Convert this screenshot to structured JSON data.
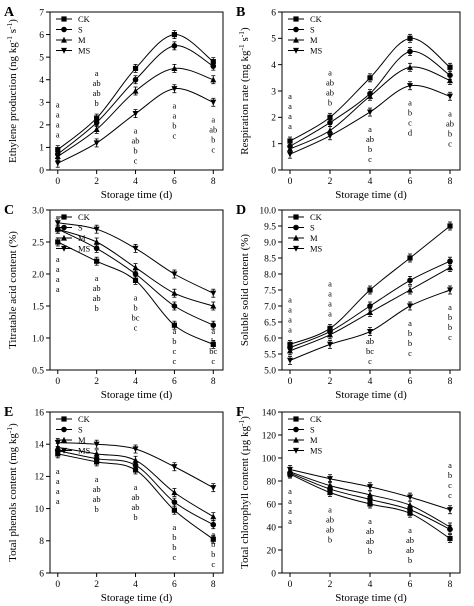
{
  "figure": {
    "legend_labels": [
      "CK",
      "S",
      "M",
      "MS"
    ]
  },
  "chart_data": [
    {
      "panel": "A",
      "type": "line",
      "xlabel": "Storage time (d)",
      "ylabel": "Ethylene production (ng kg-1 s-1)",
      "ylabel_main": "Ethylene production (ng kg",
      "ylabel_exp1": "-1",
      "ylabel_mid": " s",
      "ylabel_exp2": "-1",
      "ylabel_end": ")",
      "x": [
        0,
        2,
        4,
        6,
        8
      ],
      "xlim": [
        -0.4,
        8.5
      ],
      "ylim": [
        0,
        7
      ],
      "yticks": [
        0,
        1,
        2,
        3,
        4,
        5,
        6,
        7
      ],
      "legend_position": "top-left",
      "series": [
        {
          "name": "CK",
          "values": [
            0.9,
            2.3,
            4.5,
            6.0,
            4.8
          ]
        },
        {
          "name": "S",
          "values": [
            0.7,
            2.1,
            4.0,
            5.5,
            4.6
          ]
        },
        {
          "name": "M",
          "values": [
            0.6,
            1.8,
            3.5,
            4.5,
            4.0
          ]
        },
        {
          "name": "MS",
          "values": [
            0.3,
            1.2,
            2.5,
            3.6,
            3.0
          ]
        }
      ],
      "significance": [
        {
          "x": 0,
          "letters": [
            "a",
            "a",
            "a",
            "a"
          ]
        },
        {
          "x": 2,
          "letters": [
            "a",
            "ab",
            "ab",
            "b"
          ]
        },
        {
          "x": 4,
          "letters": [
            "a",
            "ab",
            "b",
            "c"
          ]
        },
        {
          "x": 6,
          "letters": [
            "a",
            "a",
            "b",
            "c"
          ]
        },
        {
          "x": 8,
          "letters": [
            "a",
            "ab",
            "b",
            "c"
          ]
        }
      ]
    },
    {
      "panel": "B",
      "type": "line",
      "xlabel": "Storage time (d)",
      "ylabel": "Respiration rate (mg kg-1 s-1)",
      "ylabel_main": "Respiration rate (mg kg",
      "ylabel_exp1": "-1",
      "ylabel_mid": " s",
      "ylabel_exp2": "-1",
      "ylabel_end": ")",
      "x": [
        0,
        2,
        4,
        6,
        8
      ],
      "xlim": [
        -0.4,
        8.5
      ],
      "ylim": [
        0,
        6
      ],
      "yticks": [
        0,
        1,
        2,
        3,
        4,
        5,
        6
      ],
      "legend_position": "top-left",
      "series": [
        {
          "name": "CK",
          "values": [
            1.1,
            2.0,
            3.5,
            5.0,
            3.9
          ]
        },
        {
          "name": "S",
          "values": [
            0.9,
            1.8,
            2.9,
            4.5,
            3.6
          ]
        },
        {
          "name": "M",
          "values": [
            0.8,
            1.5,
            2.8,
            3.9,
            3.4
          ]
        },
        {
          "name": "MS",
          "values": [
            0.6,
            1.3,
            2.2,
            3.2,
            2.8
          ]
        }
      ],
      "significance": [
        {
          "x": 0,
          "letters": [
            "a",
            "a",
            "a",
            "a"
          ]
        },
        {
          "x": 2,
          "letters": [
            "a",
            "ab",
            "ab",
            "b"
          ]
        },
        {
          "x": 4,
          "letters": [
            "a",
            "ab",
            "b",
            "c"
          ]
        },
        {
          "x": 6,
          "letters": [
            "a",
            "b",
            "c",
            "d"
          ]
        },
        {
          "x": 8,
          "letters": [
            "a",
            "ab",
            "b",
            "c"
          ]
        }
      ]
    },
    {
      "panel": "C",
      "type": "line",
      "xlabel": "Storage time (d)",
      "ylabel": "Titratable acid content (%)",
      "x": [
        0,
        2,
        4,
        6,
        8
      ],
      "xlim": [
        -0.4,
        8.5
      ],
      "ylim": [
        0.5,
        3.0
      ],
      "yticks": [
        0.5,
        1.0,
        1.5,
        2.0,
        2.5,
        3.0
      ],
      "legend_position": "top-right",
      "series": [
        {
          "name": "CK",
          "values": [
            2.5,
            2.2,
            1.9,
            1.2,
            0.9
          ]
        },
        {
          "name": "S",
          "values": [
            2.7,
            2.4,
            2.0,
            1.5,
            1.2
          ]
        },
        {
          "name": "M",
          "values": [
            2.7,
            2.5,
            2.1,
            1.7,
            1.5
          ]
        },
        {
          "name": "MS",
          "values": [
            2.8,
            2.7,
            2.4,
            2.0,
            1.7
          ]
        }
      ],
      "significance": [
        {
          "x": 0,
          "letters": [
            "a",
            "a",
            "a",
            "a"
          ]
        },
        {
          "x": 2,
          "letters": [
            "a",
            "ab",
            "ab",
            "b"
          ]
        },
        {
          "x": 4,
          "letters": [
            "a",
            "b",
            "bc",
            "c"
          ]
        },
        {
          "x": 6,
          "letters": [
            "a",
            "b",
            "c",
            "c"
          ]
        },
        {
          "x": 8,
          "letters": [
            "a",
            "b",
            "bc",
            "c"
          ]
        }
      ]
    },
    {
      "panel": "D",
      "type": "line",
      "xlabel": "Storage time (d)",
      "ylabel": "Soluble solid content (%)",
      "x": [
        0,
        2,
        4,
        6,
        8
      ],
      "xlim": [
        -0.4,
        8.5
      ],
      "ylim": [
        5.0,
        10.0
      ],
      "yticks": [
        5.0,
        5.5,
        6.0,
        6.5,
        7.0,
        7.5,
        8.0,
        8.5,
        9.0,
        9.5,
        10.0
      ],
      "legend_position": "top-left",
      "series": [
        {
          "name": "CK",
          "values": [
            5.8,
            6.3,
            7.5,
            8.5,
            9.5
          ]
        },
        {
          "name": "S",
          "values": [
            5.7,
            6.2,
            7.0,
            7.8,
            8.4
          ]
        },
        {
          "name": "M",
          "values": [
            5.6,
            6.1,
            6.8,
            7.5,
            8.2
          ]
        },
        {
          "name": "MS",
          "values": [
            5.3,
            5.8,
            6.2,
            7.0,
            7.5
          ]
        }
      ],
      "significance": [
        {
          "x": 0,
          "letters": [
            "a",
            "a",
            "a",
            "a"
          ]
        },
        {
          "x": 2,
          "letters": [
            "a",
            "a",
            "a",
            "a"
          ]
        },
        {
          "x": 4,
          "letters": [
            "a",
            "ab",
            "bc",
            "c"
          ]
        },
        {
          "x": 6,
          "letters": [
            "a",
            "b",
            "b",
            "c"
          ]
        },
        {
          "x": 8,
          "letters": [
            "a",
            "b",
            "b",
            "c"
          ]
        }
      ]
    },
    {
      "panel": "E",
      "type": "line",
      "xlabel": "Storage time (d)",
      "ylabel": "Total phenols content (mg kg-1)",
      "ylabel_main": "Total phenols content (mg kg",
      "ylabel_exp1": "-1",
      "ylabel_end": ")",
      "x": [
        0,
        2,
        4,
        6,
        8
      ],
      "xlim": [
        -0.4,
        8.5
      ],
      "ylim": [
        6,
        16
      ],
      "yticks": [
        6,
        8,
        10,
        12,
        14,
        16
      ],
      "legend_position": "top-left",
      "series": [
        {
          "name": "CK",
          "values": [
            13.4,
            12.9,
            12.4,
            9.9,
            8.1
          ]
        },
        {
          "name": "S",
          "values": [
            13.6,
            13.1,
            12.7,
            10.4,
            9.0
          ]
        },
        {
          "name": "M",
          "values": [
            13.8,
            13.4,
            13.0,
            11.0,
            9.5
          ]
        },
        {
          "name": "MS",
          "values": [
            14.1,
            14.0,
            13.7,
            12.6,
            11.3
          ]
        }
      ],
      "significance": [
        {
          "x": 0,
          "letters": [
            "a",
            "a",
            "a",
            "a"
          ]
        },
        {
          "x": 2,
          "letters": [
            "a",
            "ab",
            "ab",
            "b"
          ]
        },
        {
          "x": 4,
          "letters": [
            "a",
            "ab",
            "ab",
            "b"
          ]
        },
        {
          "x": 6,
          "letters": [
            "a",
            "b",
            "b",
            "c"
          ]
        },
        {
          "x": 8,
          "letters": [
            "a",
            "b",
            "b",
            "c"
          ]
        }
      ]
    },
    {
      "panel": "F",
      "type": "line",
      "xlabel": "Storage time (d)",
      "ylabel": "Total chlorophyll content (µg kg-1)",
      "ylabel_main": "Total chlorophyll content (µg kg",
      "ylabel_exp1": "-1",
      "ylabel_end": ")",
      "x": [
        0,
        2,
        4,
        6,
        8
      ],
      "xlim": [
        -0.4,
        8.5
      ],
      "ylim": [
        0,
        140
      ],
      "yticks": [
        0,
        20,
        40,
        60,
        80,
        100,
        120,
        140
      ],
      "legend_position": "top-left",
      "series": [
        {
          "name": "CK",
          "values": [
            86,
            70,
            60,
            52,
            30
          ]
        },
        {
          "name": "S",
          "values": [
            87,
            73,
            64,
            55,
            38
          ]
        },
        {
          "name": "M",
          "values": [
            88,
            76,
            68,
            59,
            40
          ]
        },
        {
          "name": "MS",
          "values": [
            90,
            82,
            75,
            66,
            55
          ]
        }
      ],
      "significance": [
        {
          "x": 0,
          "letters": [
            "a",
            "a",
            "a",
            "a"
          ]
        },
        {
          "x": 2,
          "letters": [
            "a",
            "ab",
            "ab",
            "b"
          ]
        },
        {
          "x": 4,
          "letters": [
            "a",
            "ab",
            "ab",
            "b"
          ]
        },
        {
          "x": 6,
          "letters": [
            "a",
            "ab",
            "ab",
            "b"
          ]
        },
        {
          "x": 8,
          "letters": [
            "a",
            "b",
            "c",
            "c"
          ]
        }
      ]
    }
  ]
}
